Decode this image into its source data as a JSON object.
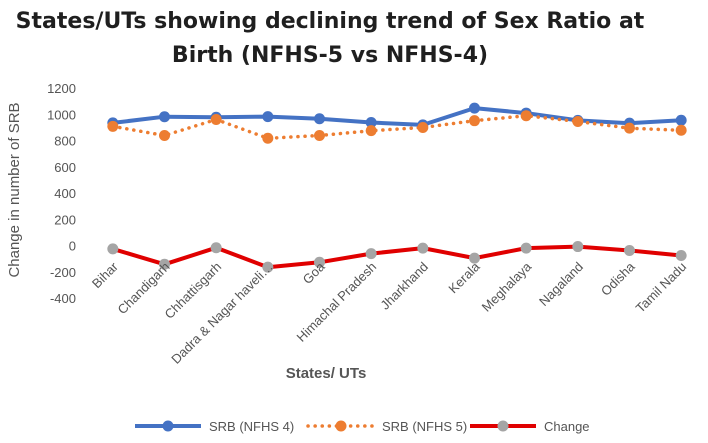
{
  "chart_data": {
    "type": "line",
    "title_lines": [
      "States/UTs showing declining trend of Sex Ratio at",
      "Birth (NFHS-5 vs NFHS-4)"
    ],
    "xlabel": "States/ UTs",
    "ylabel": "Change in number of SRB",
    "ylim": [
      -400,
      1200
    ],
    "yticks": [
      -400,
      -200,
      0,
      200,
      400,
      600,
      800,
      1000,
      1200
    ],
    "grid": false,
    "legend_position": "bottom",
    "categories": [
      "Bihar",
      "Chandigarh",
      "Chhattisgarh",
      "Dadra & Nagar haveli…",
      "Goa",
      "Himachal Pradesh",
      "Jharkhand",
      "Kerala",
      "Meghalaya",
      "Nagaland",
      "Odisha",
      "Tamil Nadu"
    ],
    "series": [
      {
        "name": "SRB (NFHS 4)",
        "color": "#4472c4",
        "style": "solid",
        "values": [
          934,
          981,
          977,
          982,
          966,
          937,
          919,
          1047,
          1009,
          953,
          932,
          954
        ]
      },
      {
        "name": "SRB (NFHS 5)",
        "color": "#ed7d31",
        "style": "dotted",
        "values": [
          908,
          838,
          960,
          817,
          838,
          875,
          899,
          951,
          989,
          945,
          894,
          878
        ]
      },
      {
        "name": "Change",
        "color": "#e00000",
        "marker_color": "#a5a5a5",
        "style": "solid",
        "values": [
          -26,
          -143,
          -17,
          -165,
          -128,
          -62,
          -20,
          -96,
          -20,
          -8,
          -38,
          -76
        ]
      }
    ]
  }
}
